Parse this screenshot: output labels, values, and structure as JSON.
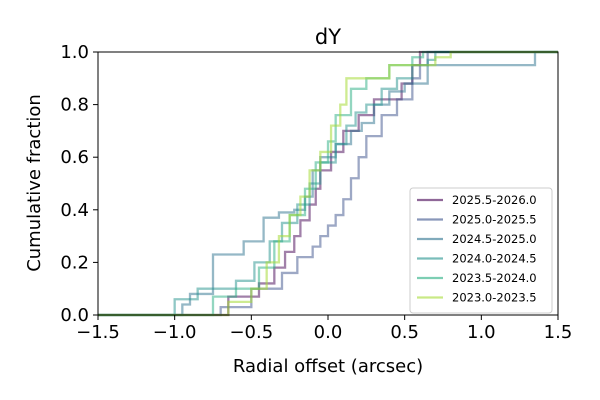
{
  "chart_data": {
    "type": "line",
    "step": "post",
    "title": "dY",
    "xlabel": "Radial offset (arcsec)",
    "ylabel": "Cumulative fraction",
    "xlim": [
      -1.5,
      1.5
    ],
    "ylim": [
      0.0,
      1.0
    ],
    "xticks": [
      "−1.5",
      "−1.0",
      "−0.5",
      "0.0",
      "0.5",
      "1.0",
      "1.5"
    ],
    "yticks": [
      "0.0",
      "0.2",
      "0.4",
      "0.6",
      "0.8",
      "1.0"
    ],
    "xtick_values": [
      -1.5,
      -1.0,
      -0.5,
      0.0,
      0.5,
      1.0,
      1.5
    ],
    "ytick_values": [
      0.0,
      0.2,
      0.4,
      0.6,
      0.8,
      1.0
    ],
    "grid": false,
    "legend_position": "lower-right",
    "series": [
      {
        "name": "2025.5-2026.0",
        "color": "#440154",
        "opacity": 0.5,
        "x": [
          -0.65,
          -0.45,
          -0.35,
          -0.28,
          -0.22,
          -0.18,
          -0.12,
          -0.08,
          -0.05,
          0.02,
          0.1,
          0.2,
          0.3,
          0.38,
          0.48,
          0.55,
          0.6
        ],
        "y": [
          0.07,
          0.12,
          0.18,
          0.24,
          0.3,
          0.36,
          0.42,
          0.48,
          0.55,
          0.62,
          0.7,
          0.76,
          0.82,
          0.82,
          0.88,
          0.95,
          1.0
        ]
      },
      {
        "name": "2025.0-2025.5",
        "color": "#3b528b",
        "opacity": 0.5,
        "x": [
          -0.7,
          -0.5,
          -0.3,
          -0.2,
          -0.1,
          -0.05,
          0.0,
          0.05,
          0.1,
          0.15,
          0.2,
          0.25,
          0.35,
          0.45,
          0.55,
          0.6,
          0.65
        ],
        "y": [
          0.03,
          0.1,
          0.16,
          0.22,
          0.26,
          0.3,
          0.34,
          0.38,
          0.44,
          0.52,
          0.6,
          0.68,
          0.76,
          0.82,
          0.9,
          0.95,
          1.0
        ]
      },
      {
        "name": "2024.5-2025.0",
        "color": "#2c728e",
        "opacity": 0.5,
        "x": [
          -0.95,
          -0.9,
          -0.75,
          -0.55,
          -0.42,
          -0.32,
          -0.22,
          -0.15,
          -0.1,
          -0.05,
          0.05,
          0.15,
          0.22,
          0.3,
          0.4,
          0.5,
          0.65,
          1.05,
          1.35
        ],
        "y": [
          0.04,
          0.08,
          0.23,
          0.28,
          0.37,
          0.39,
          0.4,
          0.45,
          0.55,
          0.6,
          0.65,
          0.7,
          0.73,
          0.8,
          0.85,
          0.88,
          0.95,
          0.95,
          1.0
        ]
      },
      {
        "name": "2024.0-2024.5",
        "color": "#21918c",
        "opacity": 0.5,
        "x": [
          -1.0,
          -0.85,
          -0.6,
          -0.48,
          -0.38,
          -0.3,
          -0.2,
          -0.12,
          -0.05,
          0.05,
          0.12,
          0.18,
          0.25,
          0.35,
          0.45,
          0.55,
          0.65,
          0.7
        ],
        "y": [
          0.06,
          0.1,
          0.13,
          0.2,
          0.28,
          0.35,
          0.42,
          0.5,
          0.58,
          0.65,
          0.72,
          0.77,
          0.8,
          0.86,
          0.9,
          0.95,
          0.97,
          1.0
        ]
      },
      {
        "name": "2023.5-2024.0",
        "color": "#27ad81",
        "opacity": 0.5,
        "x": [
          -0.75,
          -0.6,
          -0.45,
          -0.35,
          -0.25,
          -0.15,
          -0.08,
          0.0,
          0.05,
          0.15,
          0.25,
          0.4,
          0.55,
          0.62
        ],
        "y": [
          0.07,
          0.1,
          0.18,
          0.28,
          0.38,
          0.48,
          0.58,
          0.66,
          0.76,
          0.86,
          0.9,
          0.95,
          0.98,
          1.0
        ]
      },
      {
        "name": "2023.0-2023.5",
        "color": "#a5db36",
        "opacity": 0.55,
        "x": [
          -0.65,
          -0.5,
          -0.4,
          -0.32,
          -0.25,
          -0.18,
          -0.12,
          -0.05,
          0.02,
          0.08,
          0.12,
          0.25,
          0.4,
          0.55,
          0.7,
          0.8
        ],
        "y": [
          0.05,
          0.1,
          0.2,
          0.3,
          0.38,
          0.45,
          0.55,
          0.62,
          0.72,
          0.8,
          0.9,
          0.9,
          0.95,
          0.95,
          0.98,
          1.0
        ]
      }
    ]
  }
}
